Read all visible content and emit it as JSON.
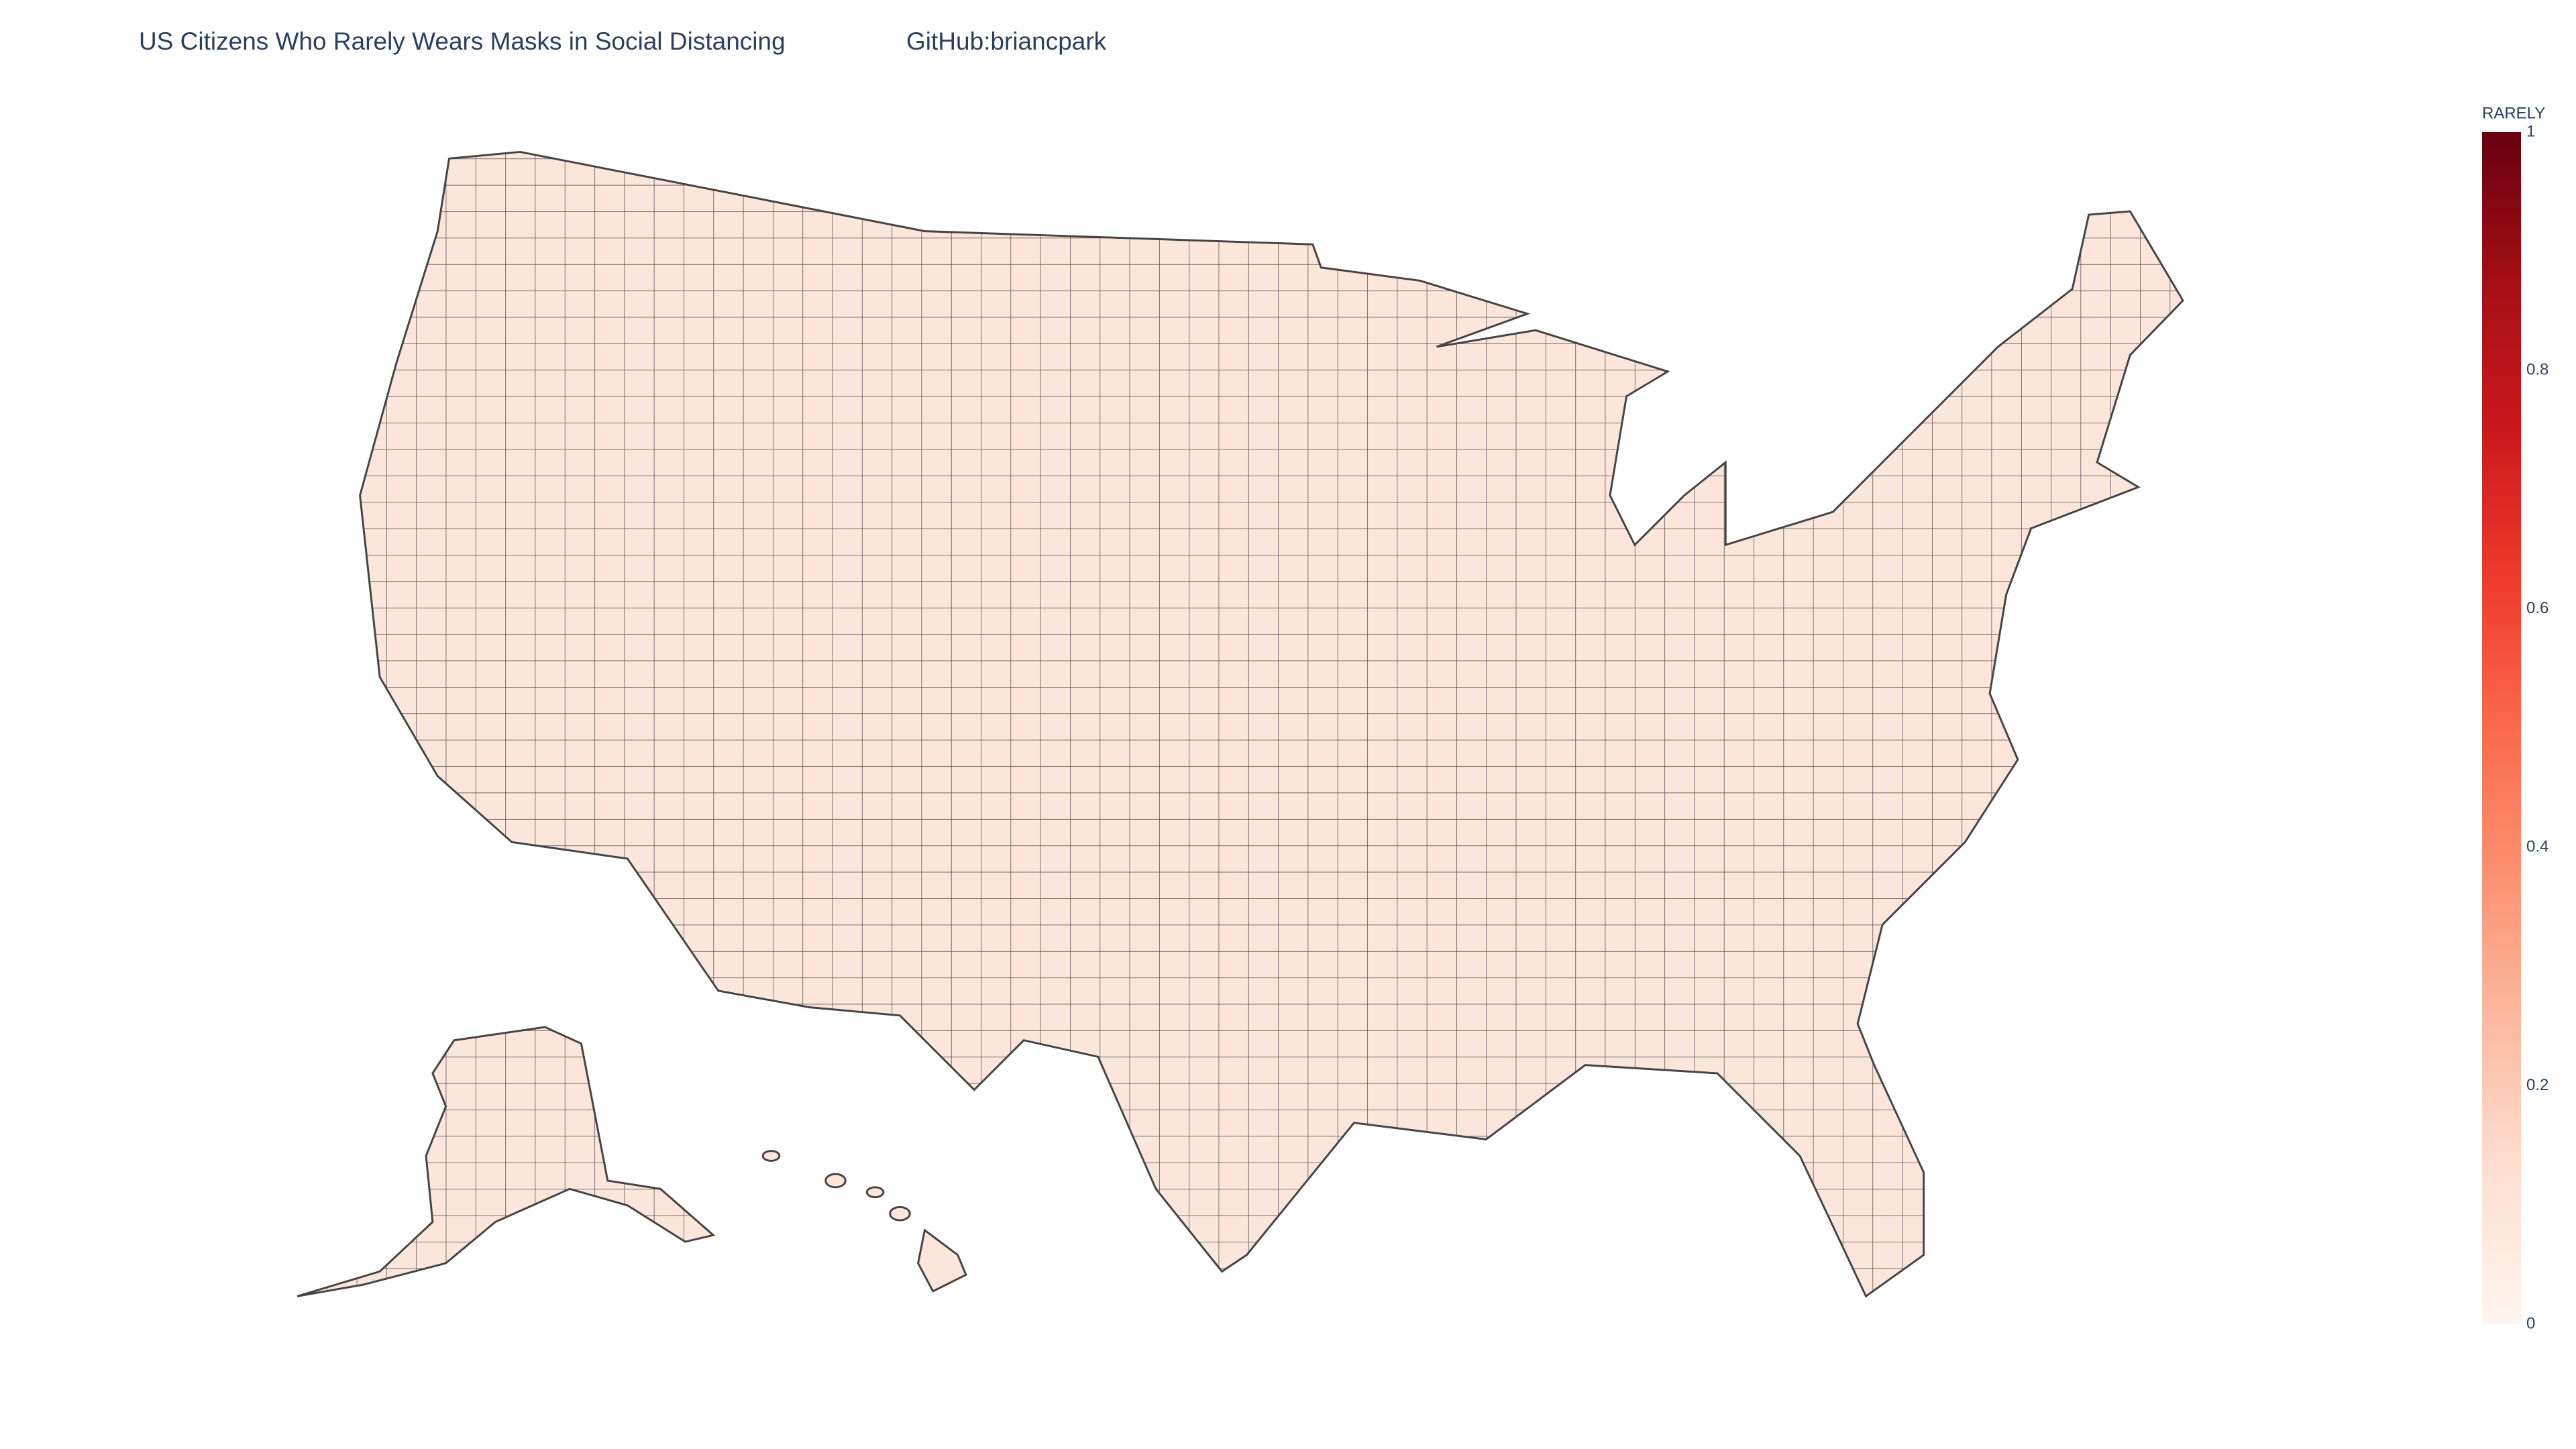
{
  "chart_data": {
    "type": "choropleth",
    "title": "US Citizens Who Rarely Wears Masks in Social Distancing",
    "subtitle": "GitHub:briancpark",
    "colorbar_title": "RARELY",
    "zlim": [
      0,
      1
    ],
    "zticks": [
      0,
      0.2,
      0.4,
      0.6,
      0.8,
      1
    ],
    "colorscale": [
      [
        0,
        "#fff5f0"
      ],
      [
        0.125,
        "#fee0d2"
      ],
      [
        0.25,
        "#fcbba1"
      ],
      [
        0.375,
        "#fc9272"
      ],
      [
        0.5,
        "#fb6a4a"
      ],
      [
        0.625,
        "#ef3b2c"
      ],
      [
        0.75,
        "#cb181d"
      ],
      [
        0.875,
        "#a50f15"
      ],
      [
        1,
        "#67000d"
      ]
    ]
  }
}
